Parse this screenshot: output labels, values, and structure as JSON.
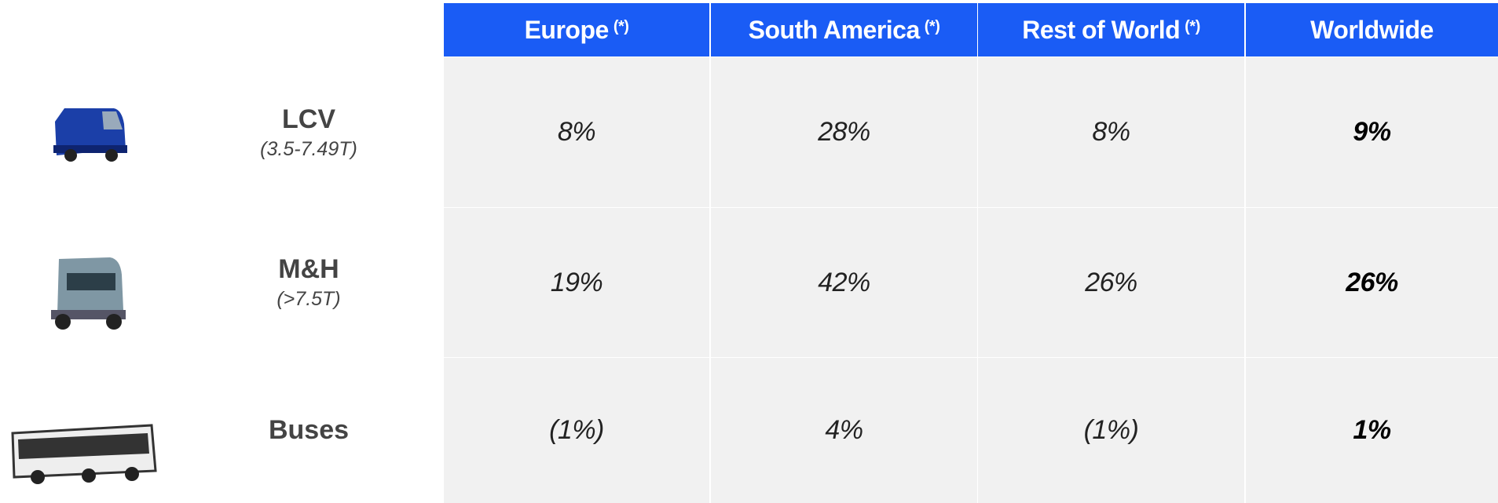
{
  "table": {
    "columns": [
      {
        "name": "Europe",
        "note": "(*)"
      },
      {
        "name": "South America",
        "note": "(*)"
      },
      {
        "name": "Rest of World",
        "note": "(*)"
      },
      {
        "name": "Worldwide"
      }
    ],
    "rows": [
      {
        "label": "LCV",
        "sublabel": "(3.5-7.49T)",
        "cells": [
          "8%",
          "28%",
          "8%",
          "9%"
        ]
      },
      {
        "label": "M&H",
        "sublabel": "(>7.5T)",
        "cells": [
          "19%",
          "42%",
          "26%",
          "26%"
        ]
      },
      {
        "label": "Buses",
        "cells": [
          "(1%)",
          "4%",
          "(1%)",
          "1%"
        ]
      }
    ]
  }
}
